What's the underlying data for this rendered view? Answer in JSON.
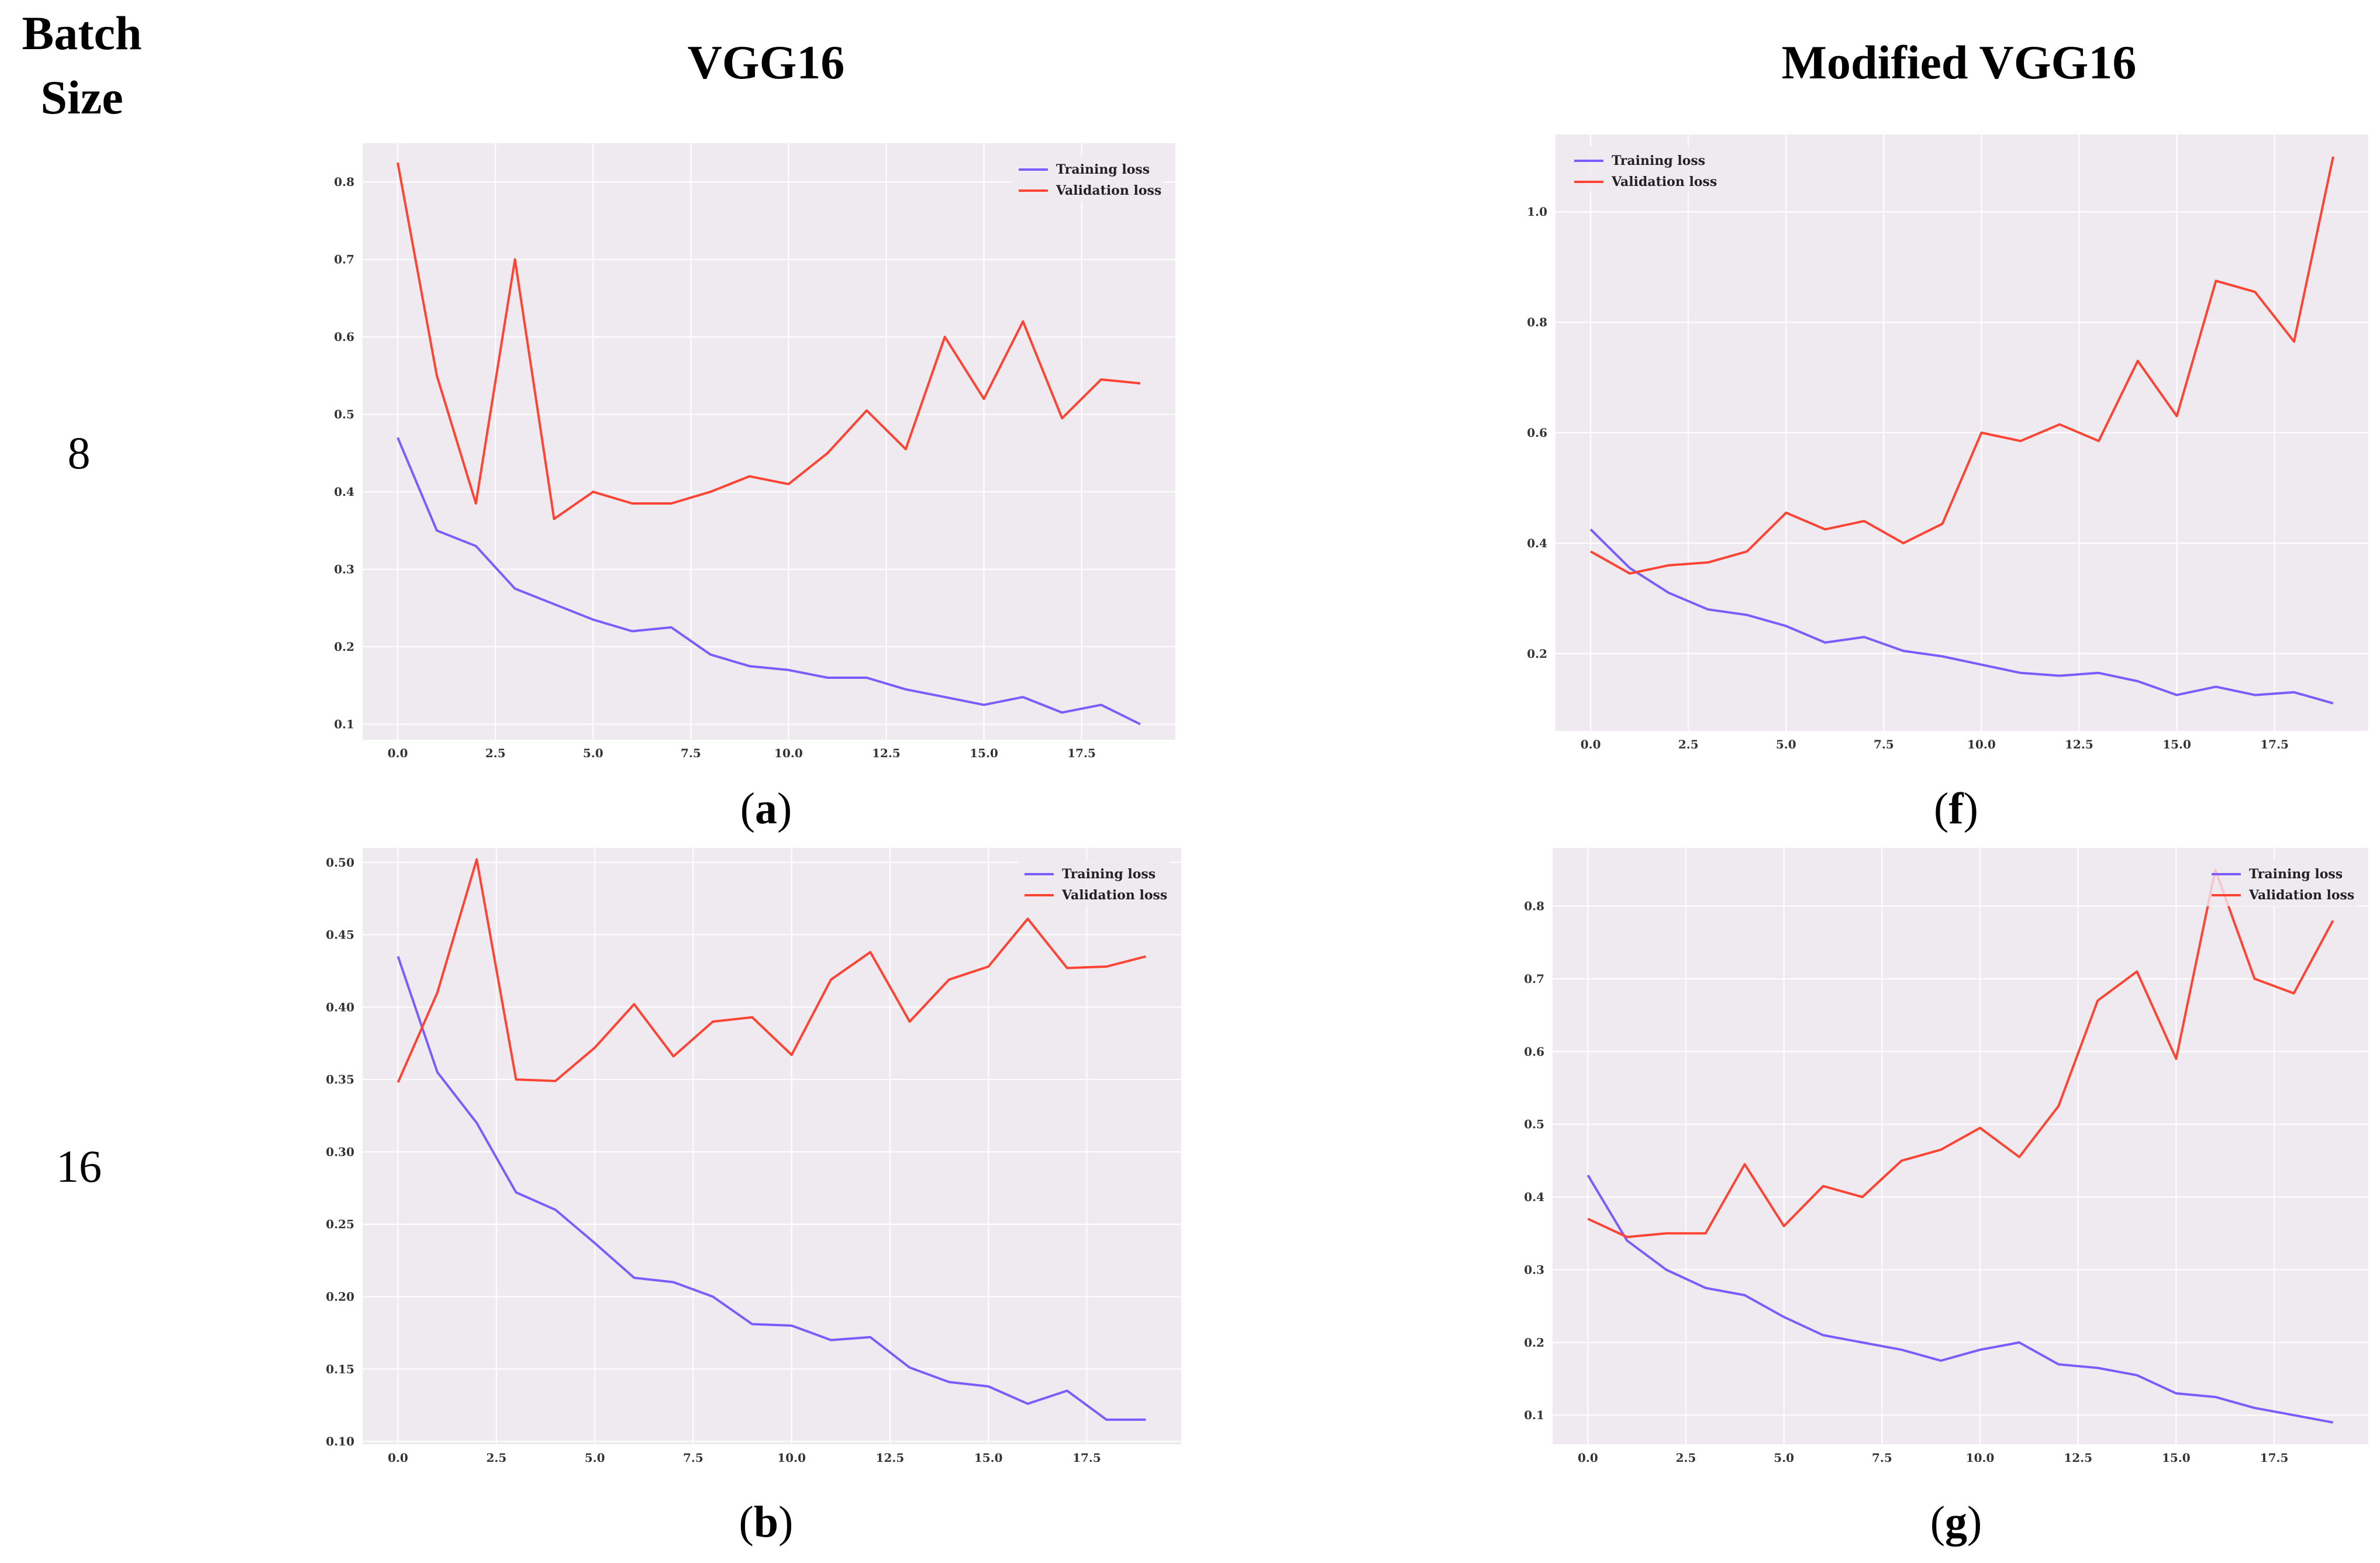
{
  "header": {
    "batch": "Batch",
    "size": "Size",
    "col1": "VGG16",
    "col2": "Modified VGG16"
  },
  "rows": {
    "r1": "8",
    "r2": "16"
  },
  "captions": {
    "a": "a",
    "b": "b",
    "f": "f",
    "g": "g",
    "open": "(",
    "close": ")"
  },
  "colors": {
    "training": "#7b5cff",
    "validation": "#ff4433",
    "plot_bg": "#efeaf0",
    "grid": "#ffffff"
  },
  "chart_data": [
    {
      "id": "a",
      "type": "line",
      "x": [
        0,
        1,
        2,
        3,
        4,
        5,
        6,
        7,
        8,
        9,
        10,
        11,
        12,
        13,
        14,
        15,
        16,
        17,
        18,
        19
      ],
      "xlim": [
        -0.9,
        19.9
      ],
      "ylim": [
        0.08,
        0.85
      ],
      "xticks": [
        0.0,
        2.5,
        5.0,
        7.5,
        10.0,
        12.5,
        15.0,
        17.5
      ],
      "xtick_labels": [
        "0.0",
        "2.5",
        "5.0",
        "7.5",
        "10.0",
        "12.5",
        "15.0",
        "17.5"
      ],
      "yticks": [
        0.1,
        0.2,
        0.3,
        0.4,
        0.5,
        0.6,
        0.7,
        0.8
      ],
      "ytick_labels": [
        "0.1",
        "0.2",
        "0.3",
        "0.4",
        "0.5",
        "0.6",
        "0.7",
        "0.8"
      ],
      "legend": "top-right",
      "series": [
        {
          "name": "Training loss",
          "values": [
            0.47,
            0.35,
            0.33,
            0.275,
            0.255,
            0.235,
            0.22,
            0.225,
            0.19,
            0.175,
            0.17,
            0.16,
            0.16,
            0.145,
            0.135,
            0.125,
            0.135,
            0.115,
            0.125,
            0.1
          ]
        },
        {
          "name": "Validation loss",
          "values": [
            0.825,
            0.55,
            0.385,
            0.7,
            0.365,
            0.4,
            0.385,
            0.385,
            0.4,
            0.42,
            0.41,
            0.45,
            0.505,
            0.455,
            0.6,
            0.52,
            0.62,
            0.495,
            0.545,
            0.54
          ]
        }
      ]
    },
    {
      "id": "f",
      "type": "line",
      "x": [
        0,
        1,
        2,
        3,
        4,
        5,
        6,
        7,
        8,
        9,
        10,
        11,
        12,
        13,
        14,
        15,
        16,
        17,
        18,
        19
      ],
      "xlim": [
        -0.9,
        19.9
      ],
      "ylim": [
        0.06,
        1.14
      ],
      "xticks": [
        0.0,
        2.5,
        5.0,
        7.5,
        10.0,
        12.5,
        15.0,
        17.5
      ],
      "xtick_labels": [
        "0.0",
        "2.5",
        "5.0",
        "7.5",
        "10.0",
        "12.5",
        "15.0",
        "17.5"
      ],
      "yticks": [
        0.2,
        0.4,
        0.6,
        0.8,
        1.0
      ],
      "ytick_labels": [
        "0.2",
        "0.4",
        "0.6",
        "0.8",
        "1.0"
      ],
      "legend": "top-left",
      "series": [
        {
          "name": "Training loss",
          "values": [
            0.425,
            0.355,
            0.31,
            0.28,
            0.27,
            0.25,
            0.22,
            0.23,
            0.205,
            0.195,
            0.18,
            0.165,
            0.16,
            0.165,
            0.15,
            0.125,
            0.14,
            0.125,
            0.13,
            0.11
          ]
        },
        {
          "name": "Validation loss",
          "values": [
            0.385,
            0.345,
            0.36,
            0.365,
            0.385,
            0.455,
            0.425,
            0.44,
            0.4,
            0.435,
            0.6,
            0.585,
            0.615,
            0.585,
            0.73,
            0.63,
            0.875,
            0.855,
            0.765,
            1.1
          ]
        }
      ]
    },
    {
      "id": "b",
      "type": "line",
      "x": [
        0,
        1,
        2,
        3,
        4,
        5,
        6,
        7,
        8,
        9,
        10,
        11,
        12,
        13,
        14,
        15,
        16,
        17,
        18,
        19
      ],
      "xlim": [
        -0.9,
        19.9
      ],
      "ylim": [
        0.098,
        0.51
      ],
      "xticks": [
        0.0,
        2.5,
        5.0,
        7.5,
        10.0,
        12.5,
        15.0,
        17.5
      ],
      "xtick_labels": [
        "0.0",
        "2.5",
        "5.0",
        "7.5",
        "10.0",
        "12.5",
        "15.0",
        "17.5"
      ],
      "yticks": [
        0.1,
        0.15,
        0.2,
        0.25,
        0.3,
        0.35,
        0.4,
        0.45,
        0.5
      ],
      "ytick_labels": [
        "0.10",
        "0.15",
        "0.20",
        "0.25",
        "0.30",
        "0.35",
        "0.40",
        "0.45",
        "0.50"
      ],
      "legend": "top-right",
      "series": [
        {
          "name": "Training loss",
          "values": [
            0.435,
            0.355,
            0.32,
            0.272,
            0.26,
            0.237,
            0.213,
            0.21,
            0.2,
            0.181,
            0.18,
            0.17,
            0.172,
            0.151,
            0.141,
            0.138,
            0.126,
            0.135,
            0.115,
            0.115
          ]
        },
        {
          "name": "Validation loss",
          "values": [
            0.348,
            0.41,
            0.502,
            0.35,
            0.349,
            0.372,
            0.402,
            0.366,
            0.39,
            0.393,
            0.367,
            0.419,
            0.438,
            0.39,
            0.419,
            0.428,
            0.461,
            0.427,
            0.428,
            0.435
          ]
        }
      ]
    },
    {
      "id": "g",
      "type": "line",
      "x": [
        0,
        1,
        2,
        3,
        4,
        5,
        6,
        7,
        8,
        9,
        10,
        11,
        12,
        13,
        14,
        15,
        16,
        17,
        18,
        19
      ],
      "xlim": [
        -0.9,
        19.9
      ],
      "ylim": [
        0.06,
        0.88
      ],
      "xticks": [
        0.0,
        2.5,
        5.0,
        7.5,
        10.0,
        12.5,
        15.0,
        17.5
      ],
      "xtick_labels": [
        "0.0",
        "2.5",
        "5.0",
        "7.5",
        "10.0",
        "12.5",
        "15.0",
        "17.5"
      ],
      "yticks": [
        0.1,
        0.2,
        0.3,
        0.4,
        0.5,
        0.6,
        0.7,
        0.8
      ],
      "ytick_labels": [
        "0.1",
        "0.2",
        "0.3",
        "0.4",
        "0.5",
        "0.6",
        "0.7",
        "0.8"
      ],
      "legend": "top-right",
      "series": [
        {
          "name": "Training loss",
          "values": [
            0.43,
            0.34,
            0.3,
            0.275,
            0.265,
            0.235,
            0.21,
            0.2,
            0.19,
            0.175,
            0.19,
            0.2,
            0.17,
            0.165,
            0.155,
            0.13,
            0.125,
            0.11,
            0.1,
            0.09
          ]
        },
        {
          "name": "Validation loss",
          "values": [
            0.37,
            0.345,
            0.35,
            0.35,
            0.445,
            0.36,
            0.415,
            0.4,
            0.45,
            0.465,
            0.495,
            0.455,
            0.525,
            0.67,
            0.71,
            0.59,
            0.85,
            0.7,
            0.68,
            0.78
          ]
        }
      ]
    }
  ]
}
